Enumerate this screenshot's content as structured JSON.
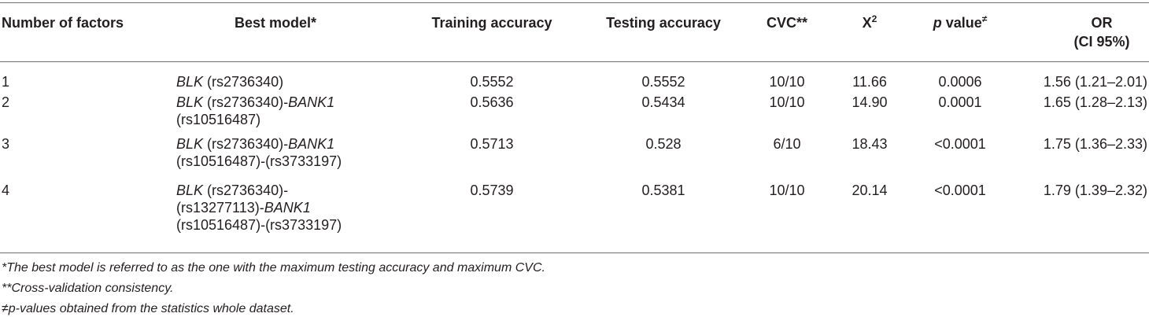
{
  "table": {
    "headers": {
      "factors": "Number of factors",
      "model": "Best model*",
      "training": "Training accuracy",
      "testing": "Testing accuracy",
      "cvc": "CVC**",
      "chi_base": "X",
      "chi_sup": "2",
      "p_italic": "p",
      "p_rest": " value",
      "p_mark": "≠",
      "or_line1": "OR",
      "or_line2": "(CI 95%)"
    },
    "rows": [
      {
        "factors": "1",
        "model": [
          {
            "gene": "BLK",
            "rest": " (rs2736340)"
          }
        ],
        "training": "0.5552",
        "testing": "0.5552",
        "cvc": "10/10",
        "chi": "11.66",
        "p": "0.0006",
        "or": "1.56 (1.21–2.01)"
      },
      {
        "factors": "2",
        "model": [
          {
            "gene": "BLK",
            "rest": " (rs2736340)-",
            "gene2": "BANK1"
          },
          {
            "rest": "(rs10516487)"
          }
        ],
        "training": "0.5636",
        "testing": "0.5434",
        "cvc": "10/10",
        "chi": "14.90",
        "p": "0.0001",
        "or": "1.65 (1.28–2.13)"
      },
      {
        "factors": "3",
        "model": [
          {
            "gene": "BLK",
            "rest": " (rs2736340)-",
            "gene2": "BANK1"
          },
          {
            "rest": "(rs10516487)-(rs3733197)"
          }
        ],
        "training": "0.5713",
        "testing": "0.528",
        "cvc": "6/10",
        "chi": "18.43",
        "p": "<0.0001",
        "or": "1.75 (1.36–2.33)"
      },
      {
        "factors": "4",
        "model": [
          {
            "gene": "BLK",
            "rest": " (rs2736340)-"
          },
          {
            "rest": "(rs13277113)-",
            "gene2": "BANK1"
          },
          {
            "rest": "(rs10516487)-(rs3733197)"
          }
        ],
        "training": "0.5739",
        "testing": "0.5381",
        "cvc": "10/10",
        "chi": "20.14",
        "p": "<0.0001",
        "or": "1.79 (1.39–2.32)"
      }
    ]
  },
  "footnotes": [
    "*The best model is referred to as the one with the maximum testing accuracy and maximum CVC.",
    "**Cross-validation consistency.",
    "≠p-values obtained from the statistics whole dataset."
  ]
}
